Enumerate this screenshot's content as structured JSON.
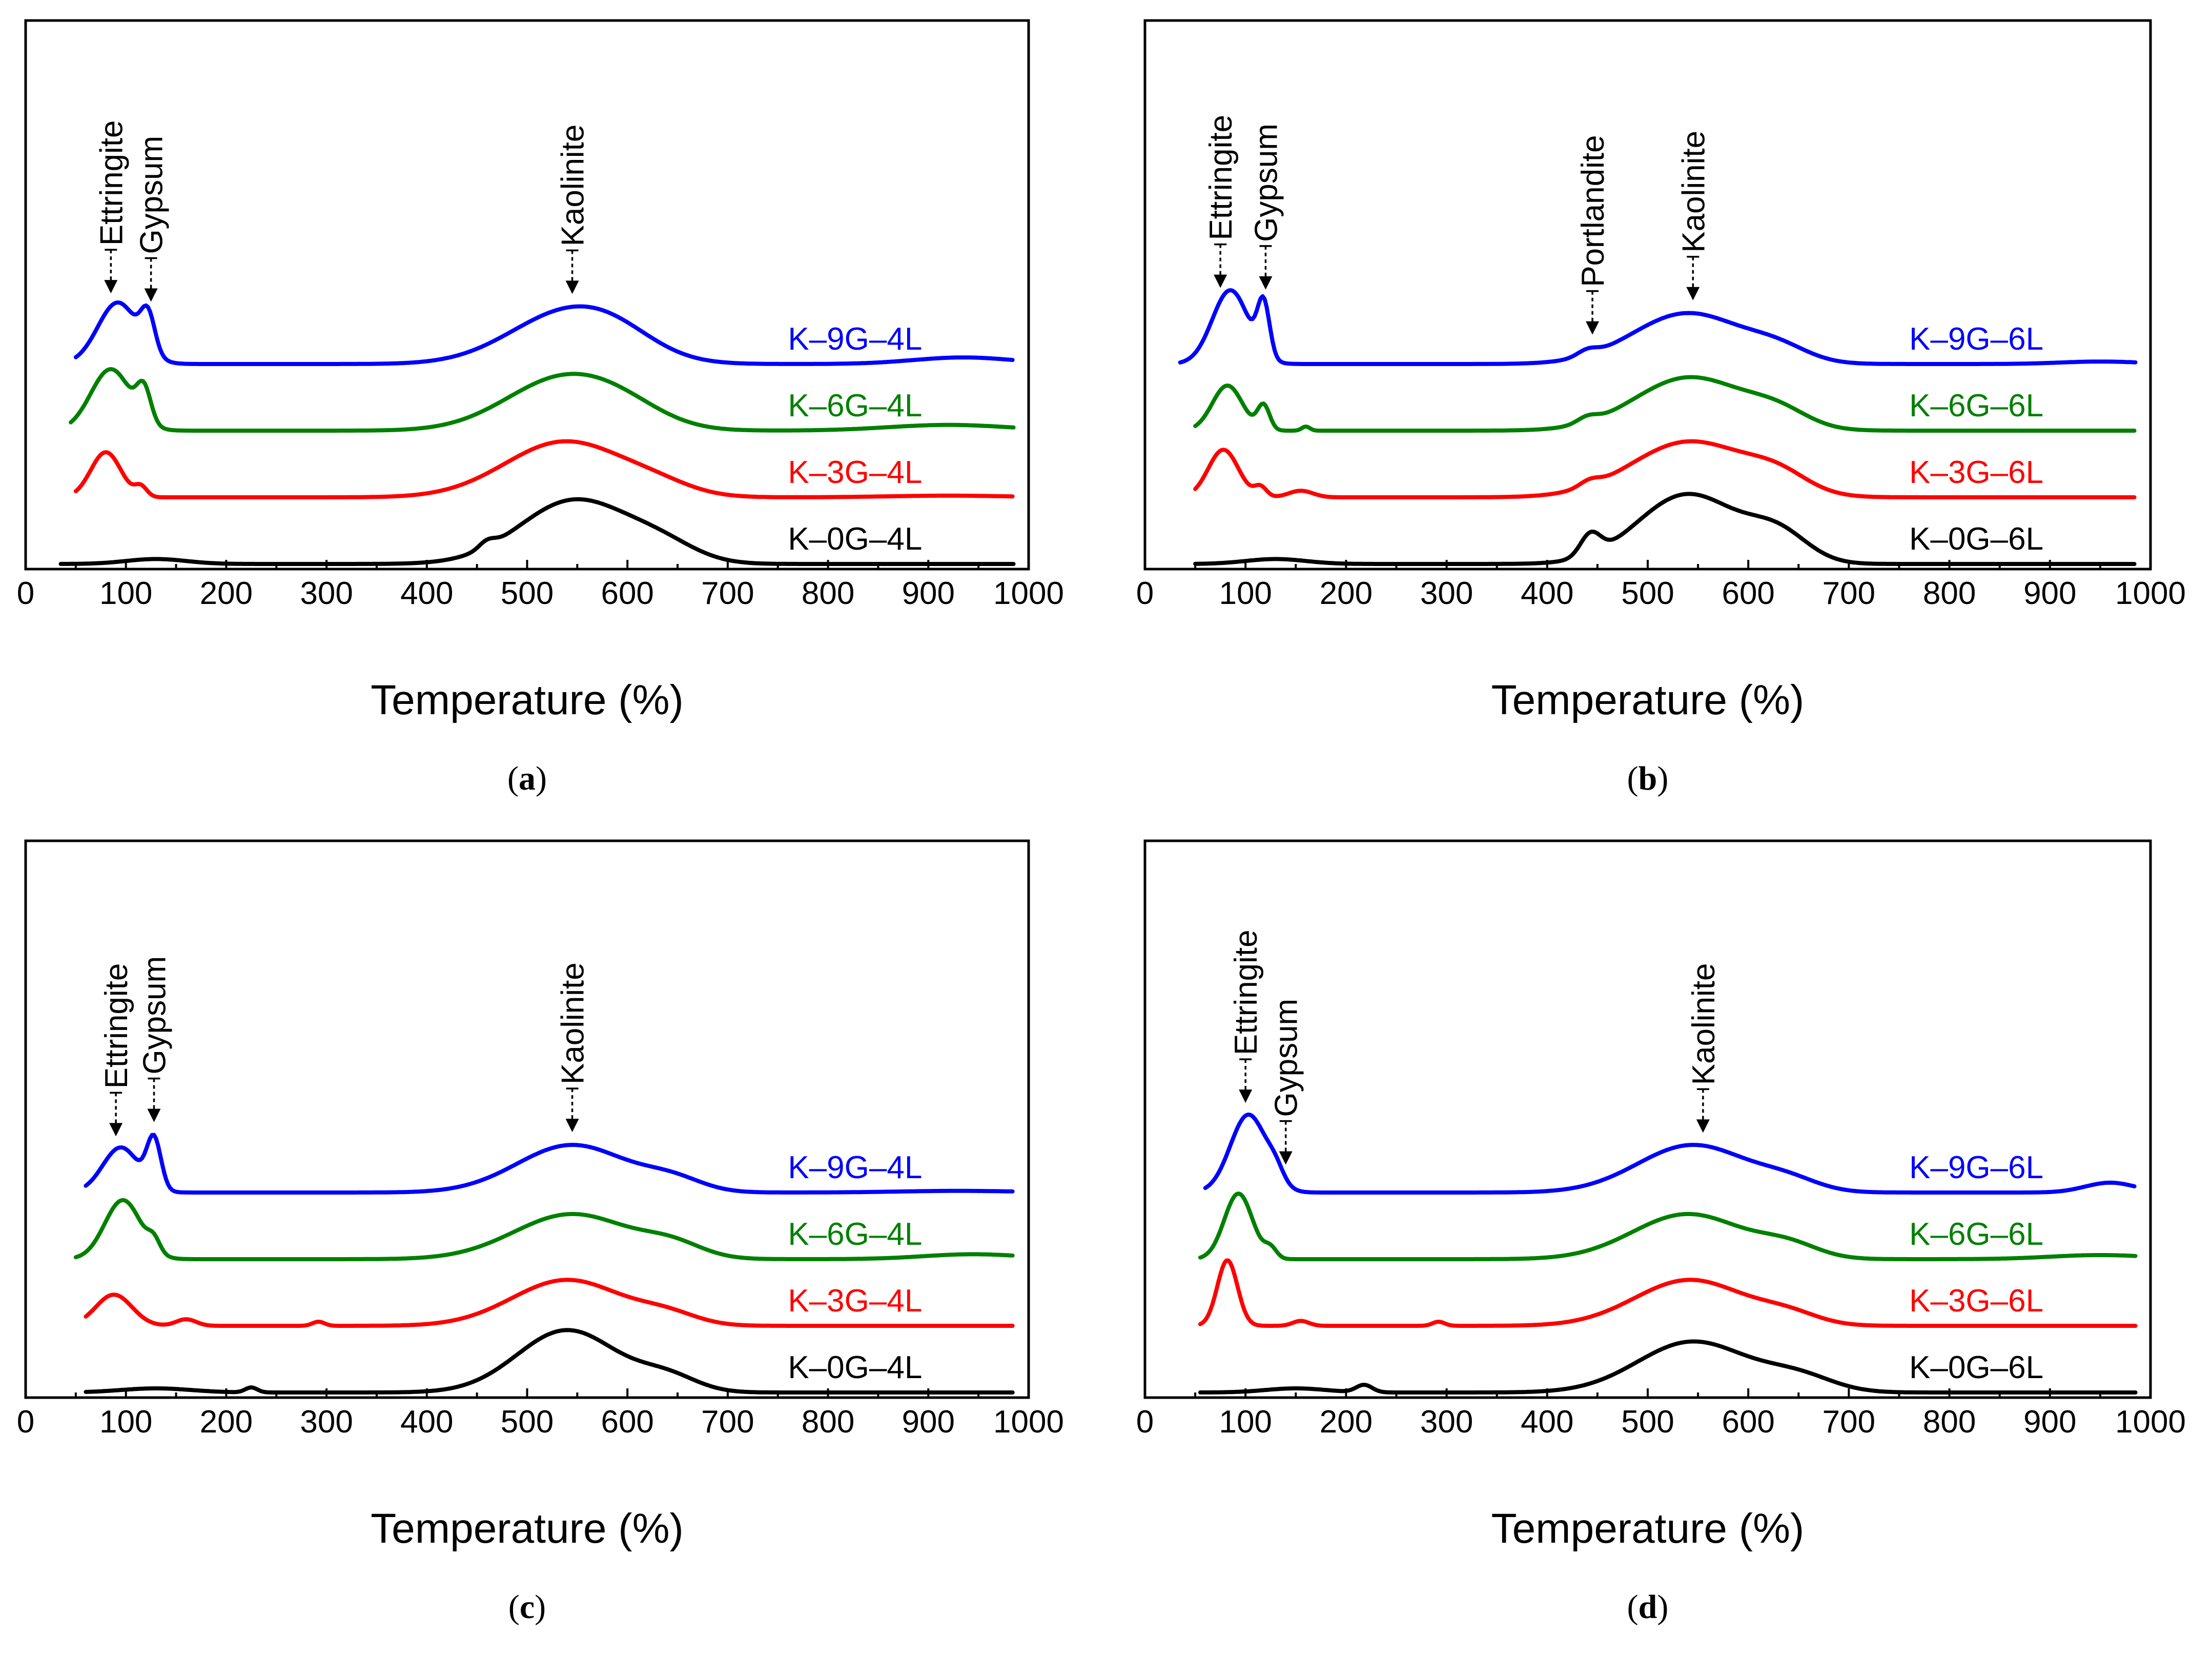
{
  "chart_data": [
    {
      "panel": "(a)",
      "panel_letter": "a",
      "type": "line",
      "xlabel": "Temperature (%)",
      "ylabel": "",
      "xlim": [
        0,
        1000
      ],
      "xticks": [
        "0",
        "100",
        "200",
        "300",
        "400",
        "500",
        "600",
        "700",
        "800",
        "900",
        "1000"
      ],
      "colors": {
        "K–9G–4L": "#0000ff",
        "K–6G–4L": "#008000",
        "K–3G–4L": "#ff0000",
        "K–0G–4L": "#000000"
      },
      "annotations": [
        {
          "text": "Ettringite",
          "x": 85,
          "tip_series": 0
        },
        {
          "text": "Gypsum",
          "x": 125,
          "tip_series": 0
        },
        {
          "text": "Kaolinite",
          "x": 545,
          "tip_series": 0
        }
      ],
      "series": [
        {
          "name": "K–9G–4L",
          "color": "#0000ff",
          "baseline": 3.0,
          "x_start": 50,
          "peaks": [
            [
              92,
              0.75,
              20
            ],
            [
              122,
              0.45,
              7
            ],
            [
              540,
              0.62,
              58
            ],
            [
              590,
              0.15,
              40
            ],
            [
              935,
              0.08,
              50
            ]
          ]
        },
        {
          "name": "K–6G–4L",
          "color": "#008000",
          "baseline": 2.0,
          "x_start": 45,
          "peaks": [
            [
              85,
              0.75,
              20
            ],
            [
              118,
              0.4,
              7
            ],
            [
              538,
              0.65,
              58
            ],
            [
              600,
              0.12,
              40
            ],
            [
              920,
              0.07,
              60
            ]
          ]
        },
        {
          "name": "K–3G–4L",
          "color": "#ff0000",
          "baseline": 1.0,
          "x_start": 50,
          "peaks": [
            [
              80,
              0.55,
              15
            ],
            [
              115,
              0.12,
              6
            ],
            [
              538,
              0.68,
              60
            ],
            [
              630,
              0.1,
              35
            ],
            [
              920,
              0.02,
              60
            ]
          ]
        },
        {
          "name": "K–0G–4L",
          "color": "#000000",
          "baseline": 0.0,
          "x_start": 35,
          "peaks": [
            [
              130,
              0.06,
              30
            ],
            [
              460,
              0.08,
              8
            ],
            [
              548,
              0.78,
              55
            ],
            [
              635,
              0.18,
              35
            ]
          ]
        }
      ]
    },
    {
      "panel": "(b)",
      "panel_letter": "b",
      "type": "line",
      "xlabel": "Temperature (%)",
      "ylabel": "",
      "xlim": [
        0,
        1000
      ],
      "xticks": [
        "0",
        "100",
        "200",
        "300",
        "400",
        "500",
        "600",
        "700",
        "800",
        "900",
        "1000"
      ],
      "colors": {
        "K–9G–6L": "#0000ff",
        "K–6G–6L": "#008000",
        "K–3G–6L": "#ff0000",
        "K–0G–6L": "#000000"
      },
      "annotations": [
        {
          "text": "Ettringite",
          "x": 75,
          "tip_series": 0
        },
        {
          "text": "Gypsum",
          "x": 120,
          "tip_series": 0
        },
        {
          "text": "Portlandite",
          "x": 445,
          "tip_series": 0
        },
        {
          "text": "Kaolinite",
          "x": 545,
          "tip_series": 0
        }
      ],
      "series": [
        {
          "name": "K–9G–6L",
          "color": "#0000ff",
          "baseline": 3.0,
          "x_start": 35,
          "peaks": [
            [
              85,
              0.9,
              18
            ],
            [
              118,
              0.65,
              6
            ],
            [
              440,
              0.07,
              10
            ],
            [
              540,
              0.62,
              55
            ],
            [
              630,
              0.15,
              30
            ],
            [
              950,
              0.03,
              40
            ]
          ]
        },
        {
          "name": "K–6G–6L",
          "color": "#008000",
          "baseline": 2.0,
          "x_start": 50,
          "peaks": [
            [
              82,
              0.55,
              15
            ],
            [
              118,
              0.3,
              6
            ],
            [
              160,
              0.05,
              4
            ],
            [
              440,
              0.07,
              10
            ],
            [
              542,
              0.65,
              55
            ],
            [
              630,
              0.18,
              30
            ]
          ]
        },
        {
          "name": "K–3G–6L",
          "color": "#ff0000",
          "baseline": 1.0,
          "x_start": 50,
          "peaks": [
            [
              78,
              0.58,
              15
            ],
            [
              115,
              0.12,
              6
            ],
            [
              155,
              0.08,
              12
            ],
            [
              442,
              0.07,
              10
            ],
            [
              542,
              0.68,
              58
            ],
            [
              630,
              0.2,
              30
            ]
          ]
        },
        {
          "name": "K–0G–6L",
          "color": "#000000",
          "baseline": 0.0,
          "x_start": 50,
          "peaks": [
            [
              130,
              0.06,
              30
            ],
            [
              443,
              0.26,
              10
            ],
            [
              540,
              0.85,
              50
            ],
            [
              630,
              0.33,
              30
            ]
          ]
        }
      ]
    },
    {
      "panel": "(c)",
      "panel_letter": "c",
      "type": "line",
      "xlabel": "Temperature (%)",
      "ylabel": "",
      "xlim": [
        0,
        1000
      ],
      "xticks": [
        "0",
        "100",
        "200",
        "300",
        "400",
        "500",
        "600",
        "700",
        "800",
        "900",
        "1000"
      ],
      "colors": {
        "K–9G–4L": "#0000ff",
        "K–6G–4L": "#008000",
        "K–3G–4L": "#ff0000",
        "K–0G–4L": "#000000"
      },
      "annotations": [
        {
          "text": "Ettringite",
          "x": 90,
          "tip_series": 0
        },
        {
          "text": "Gypsum",
          "x": 128,
          "tip_series": 0
        },
        {
          "text": "Kaolinite",
          "x": 545,
          "tip_series": 0
        }
      ],
      "series": [
        {
          "name": "K–9G–4L",
          "color": "#0000ff",
          "baseline": 3.0,
          "x_start": 60,
          "peaks": [
            [
              95,
              0.55,
              18
            ],
            [
              128,
              0.6,
              7
            ],
            [
              545,
              0.58,
              55
            ],
            [
              645,
              0.14,
              30
            ],
            [
              930,
              0.02,
              60
            ]
          ]
        },
        {
          "name": "K–6G–4L",
          "color": "#008000",
          "baseline": 2.0,
          "x_start": 50,
          "peaks": [
            [
              97,
              0.72,
              18
            ],
            [
              128,
              0.15,
              6
            ],
            [
              545,
              0.55,
              58
            ],
            [
              645,
              0.15,
              30
            ],
            [
              945,
              0.06,
              50
            ]
          ]
        },
        {
          "name": "K–3G–4L",
          "color": "#ff0000",
          "baseline": 1.0,
          "x_start": 60,
          "peaks": [
            [
              88,
              0.38,
              18
            ],
            [
              160,
              0.08,
              10
            ],
            [
              292,
              0.05,
              6
            ],
            [
              540,
              0.56,
              55
            ],
            [
              640,
              0.12,
              30
            ]
          ]
        },
        {
          "name": "K–0G–4L",
          "color": "#000000",
          "baseline": 0.0,
          "x_start": 60,
          "peaks": [
            [
              130,
              0.05,
              35
            ],
            [
              225,
              0.06,
              6
            ],
            [
              540,
              0.76,
              50
            ],
            [
              640,
              0.18,
              30
            ]
          ]
        }
      ]
    },
    {
      "panel": "(d)",
      "panel_letter": "d",
      "type": "line",
      "xlabel": "Temperature (%)",
      "ylabel": "",
      "xlim": [
        0,
        1000
      ],
      "xticks": [
        "0",
        "100",
        "200",
        "300",
        "400",
        "500",
        "600",
        "700",
        "800",
        "900",
        "1000"
      ],
      "colors": {
        "K–9G–6L": "#0000ff",
        "K–6G–6L": "#008000",
        "K–3G–6L": "#ff0000",
        "K–0G–6L": "#000000"
      },
      "annotations": [
        {
          "text": "Ettringite",
          "x": 100,
          "tip_series": 0
        },
        {
          "text": "Gypsum",
          "x": 140,
          "tip_series": 0
        },
        {
          "text": "Kaolinite",
          "x": 555,
          "tip_series": 0
        }
      ],
      "series": [
        {
          "name": "K–9G–6L",
          "color": "#0000ff",
          "baseline": 3.0,
          "x_start": 60,
          "peaks": [
            [
              103,
              0.95,
              18
            ],
            [
              130,
              0.15,
              8
            ],
            [
              545,
              0.58,
              55
            ],
            [
              640,
              0.12,
              30
            ],
            [
              960,
              0.12,
              25
            ]
          ]
        },
        {
          "name": "K–6G–6L",
          "color": "#008000",
          "baseline": 2.0,
          "x_start": 55,
          "peaks": [
            [
              93,
              0.8,
              14
            ],
            [
              125,
              0.12,
              6
            ],
            [
              540,
              0.55,
              55
            ],
            [
              640,
              0.15,
              30
            ],
            [
              950,
              0.05,
              50
            ]
          ]
        },
        {
          "name": "K–3G–6L",
          "color": "#ff0000",
          "baseline": 1.0,
          "x_start": 55,
          "peaks": [
            [
              82,
              0.8,
              10
            ],
            [
              155,
              0.06,
              8
            ],
            [
              292,
              0.05,
              6
            ],
            [
              542,
              0.56,
              55
            ],
            [
              640,
              0.12,
              30
            ]
          ]
        },
        {
          "name": "K–0G–6L",
          "color": "#000000",
          "baseline": 0.0,
          "x_start": 55,
          "peaks": [
            [
              150,
              0.05,
              30
            ],
            [
              218,
              0.09,
              8
            ],
            [
              545,
              0.62,
              55
            ],
            [
              650,
              0.18,
              35
            ]
          ]
        }
      ]
    }
  ]
}
